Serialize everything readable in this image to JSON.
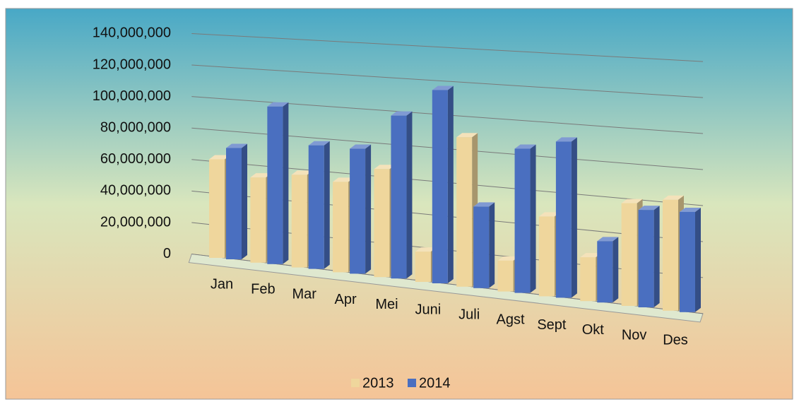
{
  "chart_data": {
    "type": "bar3d",
    "categories": [
      "Jan",
      "Feb",
      "Mar",
      "Apr",
      "Mei",
      "Juni",
      "Juli",
      "Agst",
      "Sept",
      "Okt",
      "Nov",
      "Des"
    ],
    "series": [
      {
        "name": "2013",
        "color": "#efd69c",
        "values": [
          62000000,
          53000000,
          57000000,
          55000000,
          65000000,
          18000000,
          88000000,
          18000000,
          46000000,
          25000000,
          58000000,
          62000000
        ]
      },
      {
        "name": "2014",
        "color": "#4a6fc0",
        "values": [
          70000000,
          98000000,
          76000000,
          76000000,
          98000000,
          115000000,
          48000000,
          84000000,
          90000000,
          35000000,
          55000000,
          56000000
        ]
      }
    ],
    "ylim": [
      0,
      140000000
    ],
    "yticks": [
      0,
      {
        "value": 20000000,
        "label": "20,000,000"
      },
      {
        "value": 40000000,
        "label": "40,000,000"
      },
      {
        "value": 60000000,
        "label": "60,000,000"
      },
      {
        "value": 80000000,
        "label": "80,000,000"
      },
      {
        "value": 100000000,
        "label": "100,000,000"
      },
      {
        "value": 120000000,
        "label": "120,000,000"
      },
      {
        "value": 140000000,
        "label": "140,000,000"
      }
    ],
    "grid": true,
    "legend": "bottom"
  }
}
